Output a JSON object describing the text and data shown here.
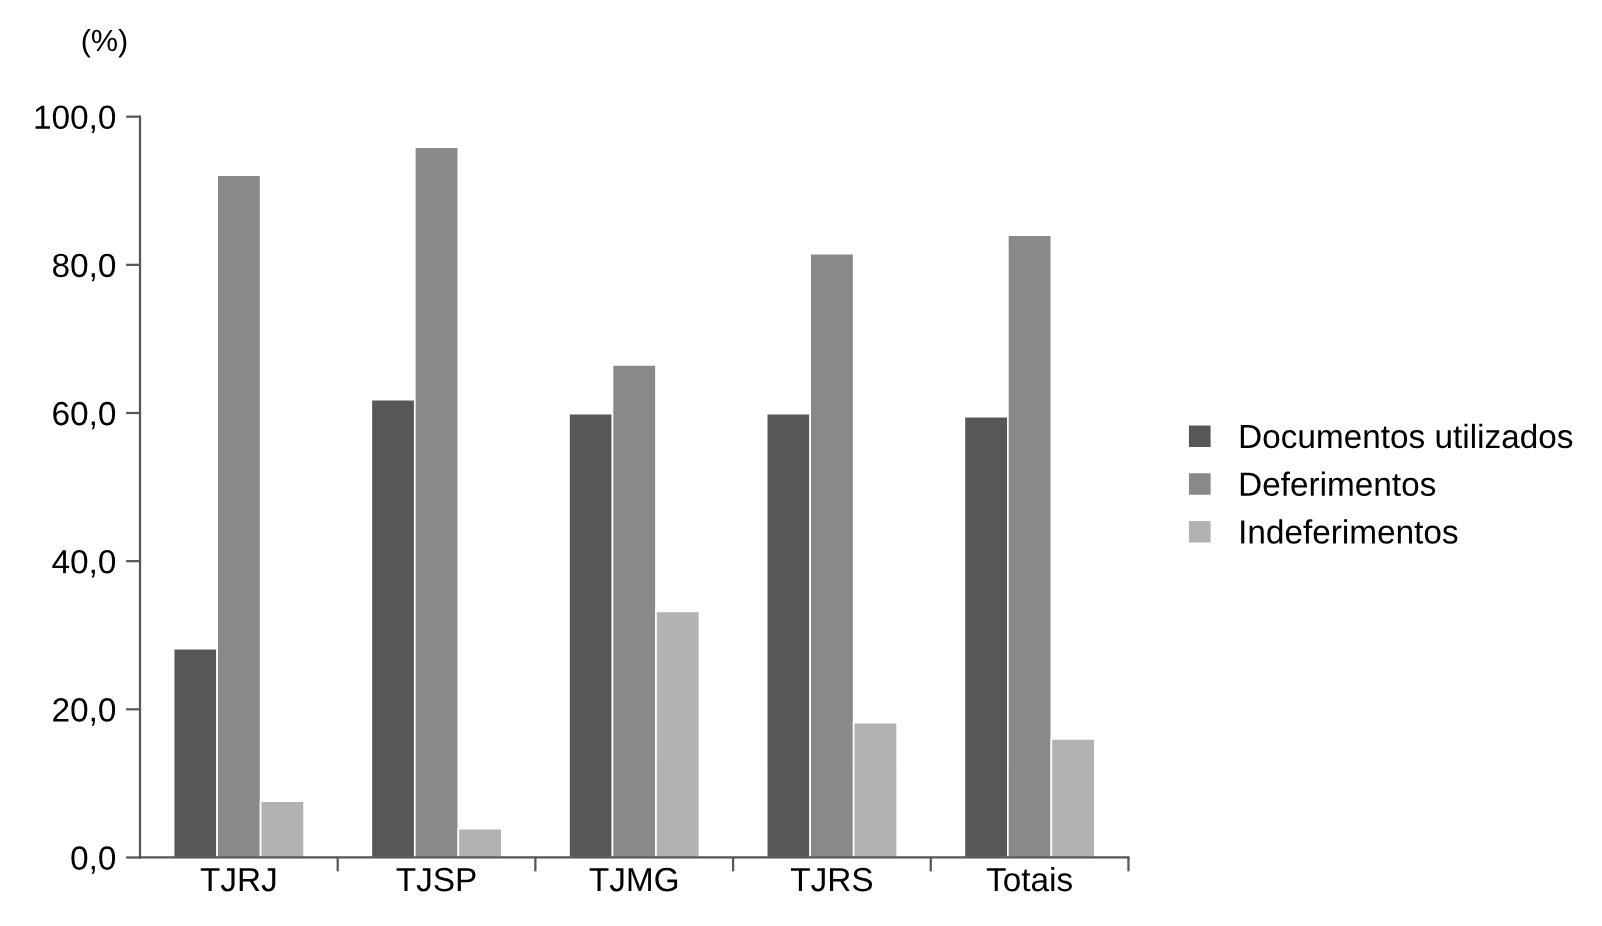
{
  "chart_data": {
    "type": "bar",
    "ylabel": "(%)",
    "categories": [
      "TJRJ",
      "TJSP",
      "TJMG",
      "TJRS",
      "Totais"
    ],
    "series": [
      {
        "name": "Documentos utilizados",
        "color": "#575755",
        "values": [
          28.2,
          61.8,
          59.9,
          59.9,
          59.5
        ]
      },
      {
        "name": "Deferimentos",
        "color": "#898989",
        "values": [
          92.1,
          95.9,
          66.5,
          81.5,
          84.0
        ]
      },
      {
        "name": "Indeferimentos",
        "color": "#b2b2b2",
        "values": [
          7.6,
          3.9,
          33.2,
          18.2,
          16.0
        ]
      }
    ],
    "ylim": [
      0,
      100
    ],
    "yticks": [
      {
        "value": 0,
        "label": "0,0"
      },
      {
        "value": 20,
        "label": "20,0"
      },
      {
        "value": 40,
        "label": "40,0"
      },
      {
        "value": 60,
        "label": "60,0"
      },
      {
        "value": 80,
        "label": "80,0"
      },
      {
        "value": 100,
        "label": "100,0"
      }
    ],
    "legend": "right",
    "grid": false
  }
}
